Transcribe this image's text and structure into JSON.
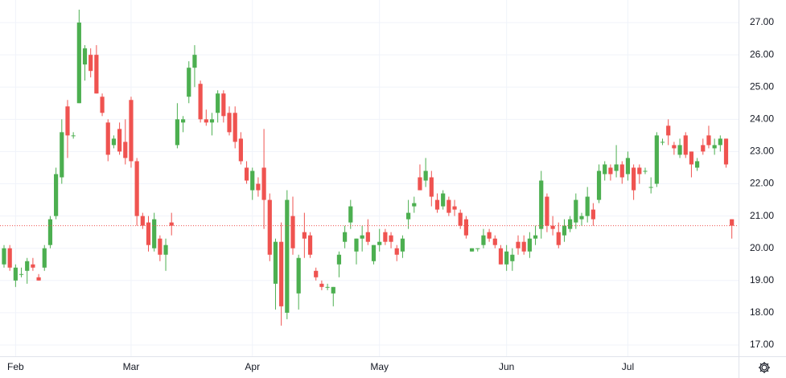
{
  "chart_data": {
    "type": "candlestick",
    "categories": [
      null,
      null,
      "Feb",
      null,
      null,
      null,
      null,
      null,
      null,
      null,
      null,
      null,
      null,
      null,
      null,
      null,
      null,
      null,
      null,
      null,
      null,
      null,
      "Mar",
      null,
      null,
      null,
      null,
      null,
      null,
      null,
      null,
      null,
      null,
      null,
      null,
      null,
      null,
      null,
      null,
      null,
      null,
      null,
      null,
      "Apr",
      null,
      null,
      null,
      null,
      null,
      null,
      null,
      null,
      null,
      null,
      null,
      null,
      null,
      null,
      null,
      null,
      null,
      null,
      null,
      null,
      null,
      "May",
      null,
      null,
      null,
      null,
      null,
      null,
      null,
      null,
      null,
      null,
      null,
      null,
      null,
      null,
      null,
      null,
      null,
      null,
      null,
      null,
      null,
      "Jun",
      null,
      null,
      null,
      null,
      null,
      null,
      null,
      null,
      null,
      null,
      null,
      null,
      null,
      null,
      null,
      null,
      null,
      null,
      null,
      null,
      "Jul",
      null,
      null,
      null,
      null,
      null,
      null,
      null,
      null,
      null,
      null,
      null,
      null,
      null,
      null,
      null,
      null,
      null,
      null
    ],
    "open": [
      19.5,
      20.0,
      19.0,
      19.2,
      19.3,
      19.5,
      19.1,
      19.4,
      20.1,
      21.0,
      22.2,
      24.4,
      23.5,
      24.5,
      25.7,
      26.0,
      26.0,
      24.7,
      23.9,
      23.2,
      23.7,
      23.3,
      24.6,
      22.7,
      21.0,
      20.8,
      20.0,
      20.3,
      19.8,
      20.8,
      23.2,
      23.9,
      24.7,
      25.6,
      25.1,
      24.0,
      23.9,
      24.2,
      24.8,
      24.2,
      24.2,
      23.4,
      22.5,
      21.8,
      22.0,
      22.5,
      21.5,
      18.9,
      20.2,
      18.0,
      21.0,
      18.6,
      20.5,
      20.4,
      19.3,
      18.9,
      18.8,
      18.6,
      19.5,
      20.2,
      20.8,
      19.9,
      20.3,
      20.5,
      19.6,
      20.1,
      20.5,
      20.4,
      20.0,
      19.9,
      20.9,
      21.3,
      22.2,
      22.1,
      22.2,
      21.5,
      21.3,
      21.5,
      21.3,
      21.1,
      20.9,
      19.9,
      20.0,
      20.1,
      20.5,
      20.3,
      20.0,
      19.5,
      19.6,
      20.2,
      20.2,
      19.9,
      20.3,
      20.6,
      21.6,
      20.7,
      20.5,
      20.4,
      20.6,
      20.8,
      20.9,
      21.0,
      21.2,
      21.5,
      22.3,
      22.5,
      22.4,
      22.6,
      22.3,
      22.5,
      22.5,
      22.4,
      21.9,
      22.0,
      23.3,
      23.8,
      23.2,
      22.9,
      23.5,
      23.0,
      22.5,
      23.2,
      23.5,
      23.1,
      23.2,
      23.4,
      20.9
    ],
    "high": [
      20.1,
      20.1,
      19.5,
      19.4,
      19.7,
      19.7,
      19.2,
      20.1,
      21.0,
      22.5,
      24.0,
      24.6,
      23.6,
      27.4,
      26.3,
      26.2,
      26.3,
      24.8,
      24.0,
      23.5,
      23.9,
      24.0,
      24.7,
      22.8,
      21.1,
      21.0,
      21.1,
      20.4,
      20.3,
      21.1,
      24.5,
      24.1,
      25.8,
      26.3,
      25.2,
      24.3,
      24.2,
      24.9,
      24.9,
      24.4,
      24.4,
      23.6,
      22.7,
      22.5,
      22.2,
      23.7,
      21.7,
      20.3,
      20.8,
      21.8,
      21.6,
      19.8,
      21.1,
      20.5,
      19.4,
      19.0,
      18.9,
      18.8,
      19.9,
      20.7,
      21.5,
      20.3,
      20.7,
      20.9,
      20.1,
      20.6,
      20.6,
      20.5,
      20.1,
      20.4,
      21.5,
      21.6,
      22.6,
      22.8,
      22.4,
      21.7,
      21.8,
      21.6,
      21.5,
      21.2,
      21.0,
      20.0,
      20.0,
      20.6,
      20.6,
      20.4,
      20.1,
      20.1,
      20.0,
      20.4,
      20.4,
      20.5,
      20.7,
      22.4,
      21.7,
      21.0,
      20.8,
      20.9,
      21.0,
      21.7,
      21.1,
      21.9,
      21.4,
      22.6,
      22.7,
      22.6,
      23.2,
      22.7,
      23.0,
      22.6,
      22.6,
      22.5,
      22.2,
      23.6,
      23.4,
      24.0,
      23.3,
      23.4,
      23.6,
      23.0,
      22.8,
      23.4,
      23.8,
      23.4,
      23.5,
      23.4,
      20.9
    ],
    "low": [
      19.4,
      19.3,
      18.8,
      19.1,
      18.9,
      19.3,
      19.0,
      19.3,
      20.0,
      20.9,
      22.0,
      22.8,
      23.4,
      24.5,
      25.2,
      25.3,
      24.8,
      24.1,
      22.7,
      23.1,
      22.9,
      22.6,
      22.5,
      20.7,
      20.6,
      19.9,
      19.9,
      19.6,
      19.3,
      20.4,
      23.1,
      23.6,
      24.5,
      25.0,
      23.9,
      23.8,
      23.5,
      23.9,
      23.9,
      23.5,
      23.1,
      22.6,
      22.0,
      21.5,
      21.6,
      20.6,
      19.6,
      18.1,
      17.6,
      17.8,
      19.8,
      18.1,
      19.7,
      19.7,
      19.0,
      18.7,
      18.7,
      18.2,
      19.1,
      20.0,
      20.6,
      19.5,
      19.9,
      20.1,
      19.5,
      19.9,
      20.1,
      20.0,
      19.6,
      19.7,
      20.6,
      21.1,
      21.8,
      21.9,
      21.3,
      21.1,
      21.2,
      21.0,
      21.0,
      20.6,
      20.3,
      19.9,
      19.9,
      20.0,
      20.2,
      20.0,
      19.5,
      19.3,
      19.3,
      19.8,
      19.8,
      19.7,
      20.1,
      20.3,
      20.5,
      20.4,
      20.0,
      20.2,
      20.5,
      20.6,
      20.7,
      20.8,
      20.7,
      21.4,
      22.1,
      22.1,
      22.2,
      22.0,
      22.1,
      21.5,
      22.0,
      22.3,
      21.7,
      21.9,
      23.2,
      23.2,
      22.9,
      22.8,
      22.8,
      22.2,
      22.4,
      22.9,
      23.1,
      22.9,
      23.0,
      22.5,
      20.3
    ],
    "close": [
      20.0,
      19.4,
      19.4,
      19.2,
      19.6,
      19.4,
      19.0,
      20.0,
      20.9,
      22.3,
      23.6,
      23.5,
      23.5,
      27.0,
      26.2,
      25.5,
      24.8,
      24.2,
      22.9,
      23.4,
      23.0,
      22.8,
      22.7,
      21.0,
      20.7,
      20.1,
      20.9,
      19.8,
      20.1,
      20.7,
      24.0,
      24.0,
      25.6,
      26.0,
      24.0,
      23.9,
      24.0,
      24.8,
      24.1,
      23.6,
      23.3,
      22.7,
      22.1,
      22.4,
      21.8,
      21.5,
      19.8,
      20.2,
      18.2,
      21.5,
      20.0,
      19.7,
      20.3,
      19.8,
      19.1,
      18.8,
      18.8,
      18.8,
      19.8,
      20.5,
      21.3,
      20.3,
      20.4,
      20.2,
      20.1,
      20.2,
      20.2,
      20.2,
      19.8,
      20.3,
      21.1,
      21.4,
      21.8,
      22.4,
      21.6,
      21.2,
      21.7,
      21.1,
      21.2,
      20.7,
      20.4,
      20.0,
      20.0,
      20.4,
      20.3,
      20.1,
      19.5,
      19.9,
      19.8,
      20.0,
      19.9,
      20.3,
      20.4,
      22.1,
      20.7,
      20.6,
      20.1,
      20.7,
      20.9,
      21.5,
      21.0,
      21.6,
      20.9,
      22.4,
      22.6,
      22.3,
      22.6,
      22.2,
      22.8,
      21.8,
      22.3,
      22.4,
      21.9,
      23.5,
      23.3,
      23.5,
      23.1,
      23.2,
      22.9,
      22.6,
      22.7,
      23.0,
      23.2,
      23.2,
      23.4,
      22.6,
      20.7
    ],
    "up_color": "#4caf50",
    "down_color": "#ef5350",
    "ylim": [
      16.65,
      27.7
    ],
    "yticks": [
      {
        "value": 17,
        "label": "17.00"
      },
      {
        "value": 18,
        "label": "18.00"
      },
      {
        "value": 19,
        "label": "19.00"
      },
      {
        "value": 20,
        "label": "20.00"
      },
      {
        "value": 21,
        "label": "21.00"
      },
      {
        "value": 22,
        "label": "22.00"
      },
      {
        "value": 23,
        "label": "23.00"
      },
      {
        "value": 24,
        "label": "24.00"
      },
      {
        "value": 25,
        "label": "25.00"
      },
      {
        "value": 26,
        "label": "26.00"
      },
      {
        "value": 27,
        "label": "27.00"
      }
    ],
    "grid": true,
    "last_price_line": true
  }
}
